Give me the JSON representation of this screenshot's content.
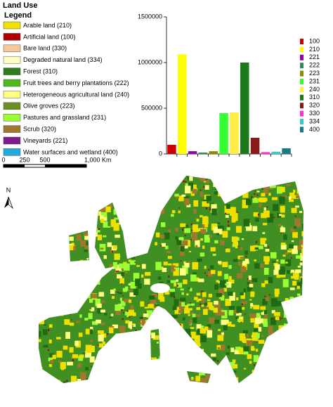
{
  "title": "Land Use",
  "legend": {
    "title": "Legend",
    "items": [
      {
        "label": "Arable land (210)",
        "color": "#f0e000"
      },
      {
        "label": "Artificial land (100)",
        "color": "#b00000"
      },
      {
        "label": "Bare land (330)",
        "color": "#f5c896"
      },
      {
        "label": "Degraded natural land (334)",
        "color": "#ffffc4"
      },
      {
        "label": "Forest (310)",
        "color": "#2e7d1a"
      },
      {
        "label": "Fruit trees and berry plantations (222)",
        "color": "#4fb81a"
      },
      {
        "label": "Heterogeneous agricultural land (240)",
        "color": "#ffff80"
      },
      {
        "label": "Olive groves (223)",
        "color": "#6b8e23"
      },
      {
        "label": "Pastures and grassland (231)",
        "color": "#99ff33"
      },
      {
        "label": "Scrub (320)",
        "color": "#a0782d"
      },
      {
        "label": "Vineyards (221)",
        "color": "#7d1a8c"
      },
      {
        "label": "Water surfaces and wetland (400)",
        "color": "#22aadd"
      }
    ]
  },
  "scale_bar": {
    "labels": [
      "0",
      "250",
      "500",
      "1,000 Km"
    ]
  },
  "north_label": "N",
  "chart_data": {
    "type": "bar",
    "categories": [
      "100",
      "210",
      "221",
      "222",
      "223",
      "231",
      "240",
      "310",
      "320",
      "330",
      "334",
      "400"
    ],
    "values": [
      100000,
      1090000,
      30000,
      15000,
      30000,
      446000,
      454000,
      1000000,
      177000,
      20000,
      25000,
      62000
    ],
    "colors": [
      "#cc0000",
      "#ffff00",
      "#9900aa",
      "#2e8b57",
      "#8b8b00",
      "#33ff33",
      "#ffee44",
      "#1a7a1a",
      "#8b1a1a",
      "#ff33cc",
      "#33cccc",
      "#1a7a8a"
    ],
    "ylim": [
      0,
      1500000
    ],
    "yticks": [
      0,
      500000,
      1000000,
      1500000
    ]
  }
}
